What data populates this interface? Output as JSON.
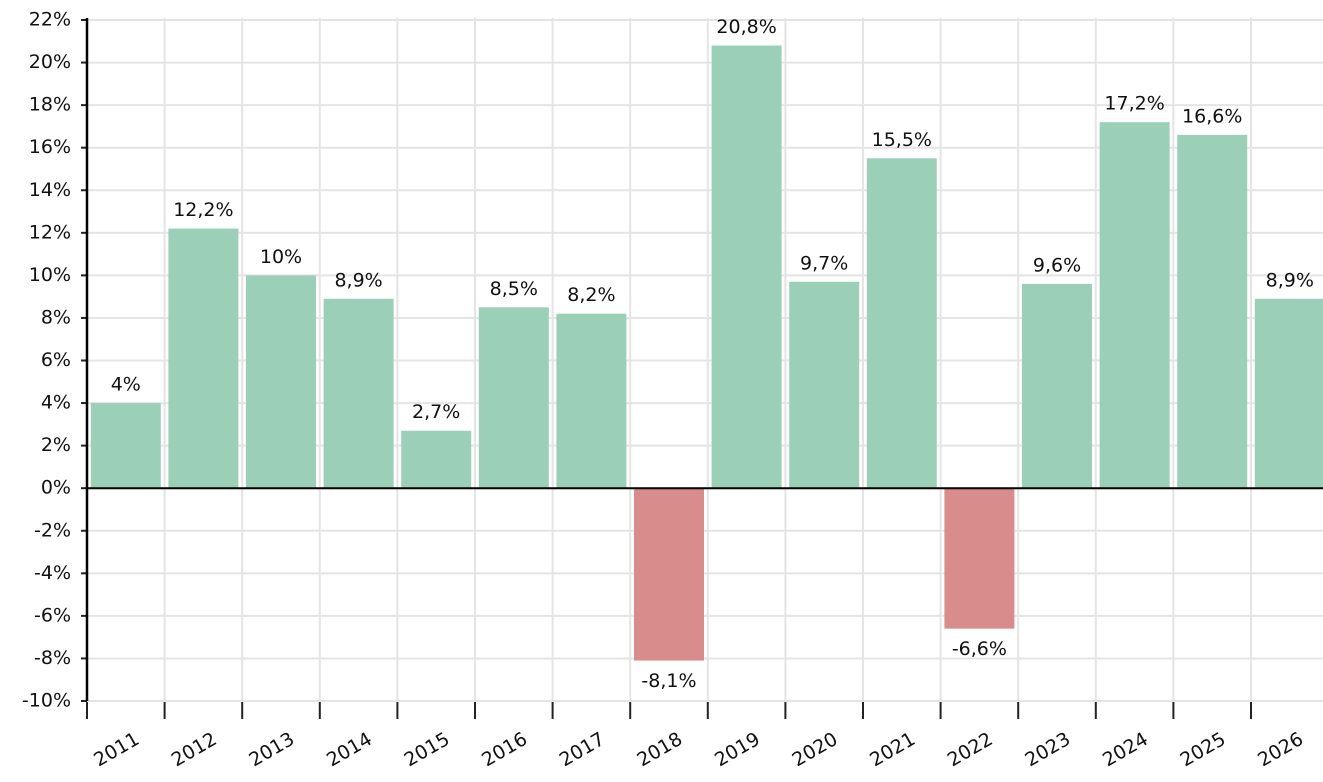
{
  "chart_data": {
    "type": "bar",
    "categories": [
      "2011",
      "2012",
      "2013",
      "2014",
      "2015",
      "2016",
      "2017",
      "2018",
      "2019",
      "2020",
      "2021",
      "2022",
      "2023",
      "2024",
      "2025",
      "2026"
    ],
    "values": [
      4,
      12.2,
      10,
      8.9,
      2.7,
      8.5,
      8.2,
      -8.1,
      20.8,
      9.7,
      15.5,
      -6.6,
      9.6,
      17.2,
      16.6,
      8.9
    ],
    "value_labels": [
      "4%",
      "12,2%",
      "10%",
      "8,9%",
      "2,7%",
      "8,5%",
      "8,2%",
      "-8,1%",
      "20,8%",
      "9,7%",
      "15,5%",
      "-6,6%",
      "9,6%",
      "17,2%",
      "16,6%",
      "8,9%"
    ],
    "positive_color": "#9ccfb8",
    "negative_color": "#d98c8c",
    "ylim": [
      -10,
      22
    ],
    "yticks": [
      {
        "value": 22,
        "label": "22%"
      },
      {
        "value": 20,
        "label": "20%"
      },
      {
        "value": 18,
        "label": "18%"
      },
      {
        "value": 16,
        "label": "16%"
      },
      {
        "value": 14,
        "label": "14%"
      },
      {
        "value": 12,
        "label": "12%"
      },
      {
        "value": 10,
        "label": "10%"
      },
      {
        "value": 8,
        "label": "8%"
      },
      {
        "value": 6,
        "label": "6%"
      },
      {
        "value": 4,
        "label": "4%"
      },
      {
        "value": 2,
        "label": "2%"
      },
      {
        "value": 0,
        "label": "0%"
      },
      {
        "value": -2,
        "label": "-2%"
      },
      {
        "value": -4,
        "label": "-4%"
      },
      {
        "value": -6,
        "label": "-6%"
      },
      {
        "value": -8,
        "label": "-8%"
      },
      {
        "value": -10,
        "label": "-10%"
      }
    ],
    "grid": true
  }
}
